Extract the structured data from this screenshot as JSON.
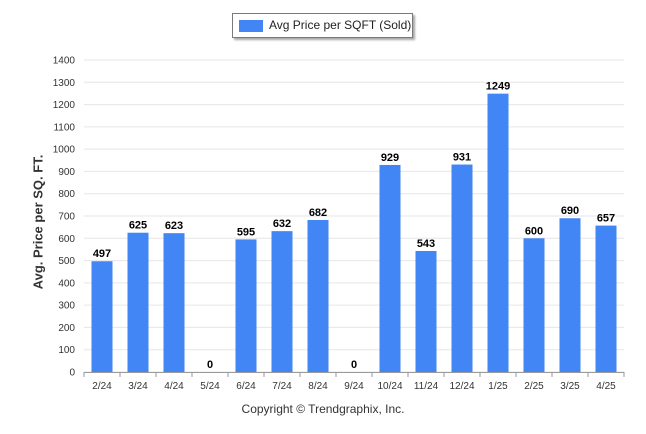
{
  "chart_data": {
    "type": "bar",
    "categories": [
      "2/24",
      "3/24",
      "4/24",
      "5/24",
      "6/24",
      "7/24",
      "8/24",
      "9/24",
      "10/24",
      "11/24",
      "12/24",
      "1/25",
      "2/25",
      "3/25",
      "4/25"
    ],
    "series": [
      {
        "name": "Avg Price per SQFT (Sold)",
        "values": [
          497,
          625,
          623,
          0,
          595,
          632,
          682,
          0,
          929,
          543,
          931,
          1249,
          600,
          690,
          657
        ]
      }
    ],
    "ylabel": "Avg. Price per SQ. FT.",
    "xlabel": "",
    "ylim": [
      0,
      1400
    ],
    "yticks": [
      0,
      100,
      200,
      300,
      400,
      500,
      600,
      700,
      800,
      900,
      1000,
      1100,
      1200,
      1300,
      1400
    ],
    "grid": true,
    "legend_position": "top-center",
    "bar_color": "#4285f4",
    "data_labels": true
  },
  "credit": "Copyright © Trendgraphix, Inc."
}
